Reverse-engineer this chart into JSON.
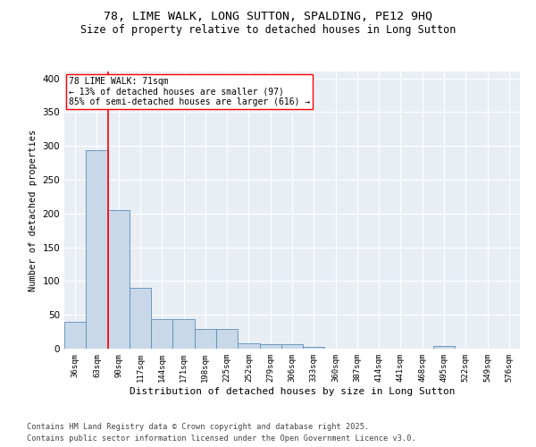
{
  "title1": "78, LIME WALK, LONG SUTTON, SPALDING, PE12 9HQ",
  "title2": "Size of property relative to detached houses in Long Sutton",
  "xlabel": "Distribution of detached houses by size in Long Sutton",
  "ylabel": "Number of detached properties",
  "categories": [
    "36sqm",
    "63sqm",
    "90sqm",
    "117sqm",
    "144sqm",
    "171sqm",
    "198sqm",
    "225sqm",
    "252sqm",
    "279sqm",
    "306sqm",
    "333sqm",
    "360sqm",
    "387sqm",
    "414sqm",
    "441sqm",
    "468sqm",
    "495sqm",
    "522sqm",
    "549sqm",
    "576sqm"
  ],
  "values": [
    40,
    293,
    205,
    90,
    44,
    44,
    29,
    29,
    8,
    6,
    6,
    3,
    0,
    0,
    0,
    0,
    0,
    4,
    0,
    0,
    0
  ],
  "bar_color": "#c8d8e8",
  "bar_edge_color": "#5b8db8",
  "vline_x": 1.5,
  "vline_color": "red",
  "annotation_text": "78 LIME WALK: 71sqm\n← 13% of detached houses are smaller (97)\n85% of semi-detached houses are larger (616) →",
  "annotation_box_color": "white",
  "annotation_box_edge": "red",
  "ylim": [
    0,
    410
  ],
  "yticks": [
    0,
    50,
    100,
    150,
    200,
    250,
    300,
    350,
    400
  ],
  "bg_color": "#e8eef4",
  "grid_color": "white",
  "footer1": "Contains HM Land Registry data © Crown copyright and database right 2025.",
  "footer2": "Contains public sector information licensed under the Open Government Licence v3.0.",
  "title1_fontsize": 9.5,
  "title2_fontsize": 8.5,
  "annotation_fontsize": 7.0,
  "footer_fontsize": 6.2,
  "ylabel_fontsize": 7.5,
  "xlabel_fontsize": 8.0
}
